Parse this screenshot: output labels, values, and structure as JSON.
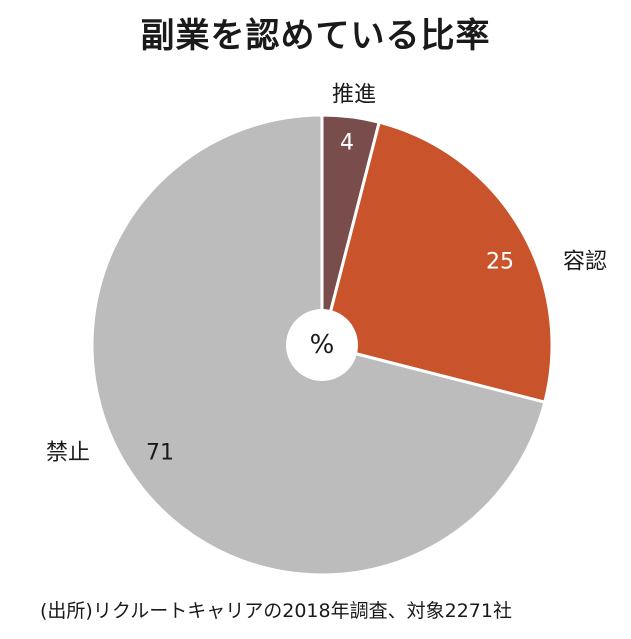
{
  "chart_data": {
    "type": "pie",
    "title": "副業を認めている比率",
    "unit": "%",
    "slices": [
      {
        "label": "推進",
        "value": 4,
        "color": "#7a4d4d",
        "value_color": "#ffffff"
      },
      {
        "label": "容認",
        "value": 25,
        "color": "#c9542c",
        "value_color": "#ffffff"
      },
      {
        "label": "禁止",
        "value": 71,
        "color": "#bcbcbc",
        "value_color": "#1a1a1a"
      }
    ]
  },
  "footer": {
    "source": "(出所)リクルートキャリアの2018年調査、対象2271社"
  }
}
